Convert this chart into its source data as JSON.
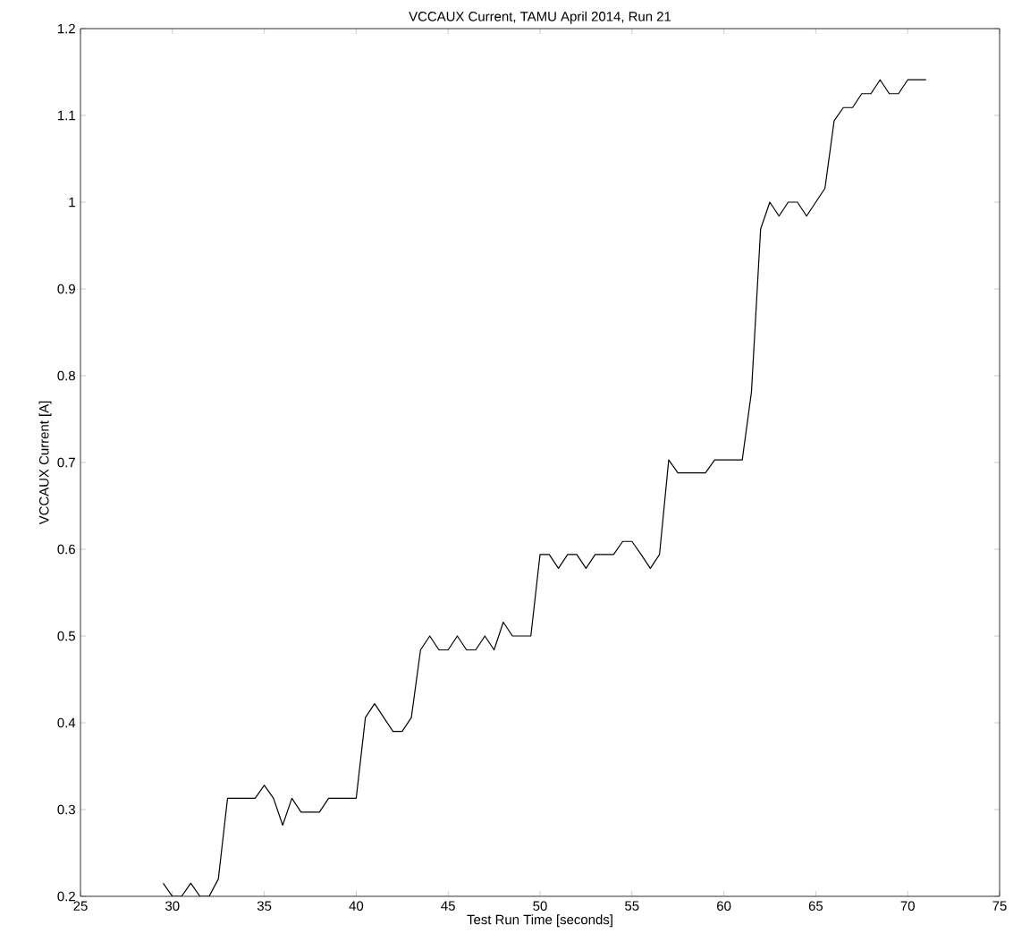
{
  "chart_data": {
    "type": "line",
    "title": "VCCAUX Current, TAMU April 2014, Run 21",
    "xlabel": "Test Run Time [seconds]",
    "ylabel": "VCCAUX Current [A]",
    "xlim": [
      25,
      75
    ],
    "ylim": [
      0.2,
      1.2
    ],
    "xticks": [
      25,
      30,
      35,
      40,
      45,
      50,
      55,
      60,
      65,
      70,
      75
    ],
    "yticks": [
      0.2,
      0.3,
      0.4,
      0.5,
      0.6,
      0.7,
      0.8,
      0.9,
      1,
      1.1,
      1.2
    ],
    "marker": "none",
    "line_style": "solid",
    "series": [
      {
        "color": "#000000",
        "x": [
          29.5,
          30,
          30.5,
          31,
          31.5,
          32,
          32.5,
          33,
          33.5,
          34,
          34.5,
          35,
          35.5,
          36,
          36.5,
          37,
          37.5,
          38,
          38.5,
          39,
          39.5,
          40,
          40.5,
          41,
          41.5,
          42,
          42.5,
          43,
          43.5,
          44,
          44.5,
          45,
          45.5,
          46,
          46.5,
          47,
          47.5,
          48,
          48.5,
          49,
          49.5,
          50,
          50.5,
          51,
          51.5,
          52,
          52.5,
          53,
          53.5,
          54,
          54.5,
          55,
          55.5,
          56,
          56.5,
          57,
          57.5,
          58,
          58.5,
          59,
          59.5,
          60,
          60.5,
          61,
          61.5,
          62,
          62.5,
          63,
          63.5,
          64,
          64.5,
          65,
          65.5,
          66,
          66.5,
          67,
          67.5,
          68,
          68.5,
          69,
          69.5,
          70,
          70.5,
          71
        ],
        "values": [
          0.215,
          0.2,
          0.2,
          0.215,
          0.2,
          0.2,
          0.22,
          0.313,
          0.313,
          0.313,
          0.313,
          0.328,
          0.313,
          0.282,
          0.313,
          0.297,
          0.297,
          0.297,
          0.313,
          0.313,
          0.313,
          0.313,
          0.406,
          0.422,
          0.406,
          0.39,
          0.39,
          0.406,
          0.484,
          0.5,
          0.484,
          0.484,
          0.5,
          0.484,
          0.484,
          0.5,
          0.484,
          0.516,
          0.5,
          0.5,
          0.5,
          0.594,
          0.594,
          0.578,
          0.594,
          0.594,
          0.578,
          0.594,
          0.594,
          0.594,
          0.609,
          0.609,
          0.594,
          0.578,
          0.594,
          0.703,
          0.688,
          0.688,
          0.688,
          0.688,
          0.703,
          0.703,
          0.703,
          0.703,
          0.781,
          0.969,
          1.0,
          0.984,
          1.0,
          1.0,
          0.984,
          1.0,
          1.016,
          1.094,
          1.109,
          1.109,
          1.125,
          1.125,
          1.141,
          1.125,
          1.125,
          1.141,
          1.141,
          1.141
        ]
      }
    ]
  }
}
